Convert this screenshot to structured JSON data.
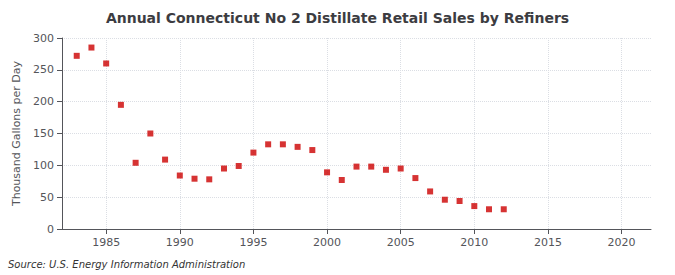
{
  "chart_data": {
    "type": "scatter",
    "title": "Annual Connecticut No 2 Distillate Retail Sales by Refiners",
    "ylabel": "Thousand Gallons per Day",
    "source": "Source: U.S. Energy Information Administration",
    "x": [
      1983,
      1984,
      1985,
      1986,
      1987,
      1988,
      1989,
      1990,
      1991,
      1992,
      1993,
      1994,
      1995,
      1996,
      1997,
      1998,
      1999,
      2000,
      2001,
      2002,
      2003,
      2004,
      2005,
      2006,
      2007,
      2008,
      2009,
      2010,
      2011,
      2012
    ],
    "values": [
      272,
      285,
      260,
      195,
      104,
      150,
      109,
      84,
      79,
      78,
      95,
      99,
      120,
      133,
      133,
      129,
      124,
      89,
      77,
      98,
      98,
      93,
      95,
      80,
      59,
      46,
      44,
      36,
      31,
      31
    ],
    "color": "#cc0000",
    "marker": "square",
    "xlim": [
      1982,
      2022
    ],
    "ylim": [
      0,
      300
    ],
    "xticks": [
      1985,
      1990,
      1995,
      2000,
      2005,
      2010,
      2015,
      2020
    ],
    "yticks": [
      0,
      50,
      100,
      150,
      200,
      250,
      300
    ],
    "grid": true
  }
}
